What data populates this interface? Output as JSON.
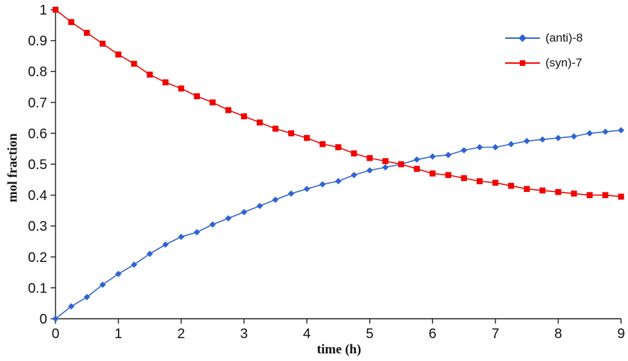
{
  "chart_data": {
    "type": "line",
    "title": "",
    "xlabel": "time (h)",
    "ylabel": "mol fraction",
    "xlim": [
      0,
      9
    ],
    "ylim": [
      0,
      1
    ],
    "grid": false,
    "legend_position": "upper right",
    "xticks": [
      "0",
      "1",
      "2",
      "3",
      "4",
      "5",
      "6",
      "7",
      "8",
      "9"
    ],
    "yticks": [
      "0",
      "0.1",
      "0.2",
      "0.3",
      "0.4",
      "0.5",
      "0.6",
      "0.7",
      "0.8",
      "0.9",
      "1"
    ],
    "x": [
      0,
      0.25,
      0.5,
      0.75,
      1,
      1.25,
      1.5,
      1.75,
      2,
      2.25,
      2.5,
      2.75,
      3,
      3.25,
      3.5,
      3.75,
      4,
      4.25,
      4.5,
      4.75,
      5,
      5.25,
      5.5,
      5.75,
      6,
      6.25,
      6.5,
      6.75,
      7,
      7.25,
      7.5,
      7.75,
      8,
      8.25,
      8.5,
      8.75,
      9
    ],
    "series": [
      {
        "name": "(anti)-8",
        "color": "#2f63d2",
        "marker": "diamond",
        "values": [
          0,
          0.04,
          0.07,
          0.11,
          0.145,
          0.175,
          0.21,
          0.24,
          0.265,
          0.28,
          0.305,
          0.325,
          0.345,
          0.365,
          0.385,
          0.405,
          0.42,
          0.435,
          0.445,
          0.465,
          0.48,
          0.49,
          0.5,
          0.515,
          0.525,
          0.53,
          0.545,
          0.555,
          0.555,
          0.565,
          0.575,
          0.58,
          0.585,
          0.59,
          0.6,
          0.605,
          0.61
        ]
      },
      {
        "name": "(syn)-7",
        "color": "#f20000",
        "marker": "square",
        "values": [
          1,
          0.96,
          0.925,
          0.89,
          0.855,
          0.825,
          0.79,
          0.765,
          0.745,
          0.72,
          0.7,
          0.675,
          0.655,
          0.635,
          0.615,
          0.6,
          0.585,
          0.565,
          0.555,
          0.535,
          0.52,
          0.51,
          0.5,
          0.485,
          0.47,
          0.465,
          0.455,
          0.445,
          0.44,
          0.43,
          0.42,
          0.415,
          0.41,
          0.405,
          0.4,
          0.4,
          0.395
        ]
      }
    ]
  }
}
